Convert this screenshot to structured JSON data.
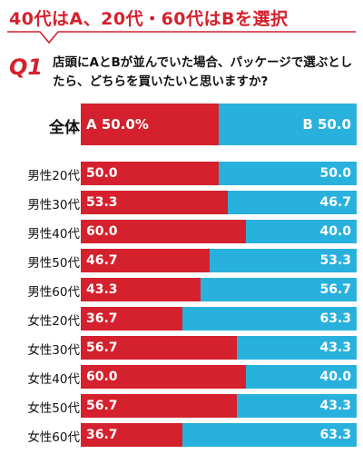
{
  "headline": "40代はA、20代・60代はBを選択",
  "question_mark": "Q1",
  "question": "店頭にAとBが並んでいた場合、パッケージで選ぶとしたら、どちらを買いたいと思いますか?",
  "colors": {
    "a": "#d4212d",
    "b": "#29b1dd"
  },
  "chart_data": {
    "type": "bar",
    "orientation": "horizontal-stacked-100",
    "categories": [
      "全体",
      "男性20代",
      "男性30代",
      "男性40代",
      "男性50代",
      "男性60代",
      "女性20代",
      "女性30代",
      "女性40代",
      "女性50代",
      "女性60代"
    ],
    "series": [
      {
        "name": "A",
        "values": [
          50.0,
          50.0,
          53.3,
          60.0,
          46.7,
          43.3,
          36.7,
          56.7,
          60.0,
          56.7,
          36.7
        ]
      },
      {
        "name": "B",
        "values": [
          50.0,
          50.0,
          46.7,
          40.0,
          53.3,
          56.7,
          63.3,
          43.3,
          40.0,
          43.3,
          63.3
        ]
      }
    ],
    "total_labels": {
      "a": "A 50.0%",
      "b": "B 50.0"
    },
    "value_labels": {
      "a": [
        "50.0",
        "53.3",
        "60.0",
        "46.7",
        "43.3",
        "36.7",
        "56.7",
        "60.0",
        "56.7",
        "36.7"
      ],
      "b": [
        "50.0",
        "46.7",
        "40.0",
        "53.3",
        "56.7",
        "63.3",
        "43.3",
        "40.0",
        "43.3",
        "63.3"
      ]
    },
    "xlim": [
      0,
      100
    ]
  }
}
